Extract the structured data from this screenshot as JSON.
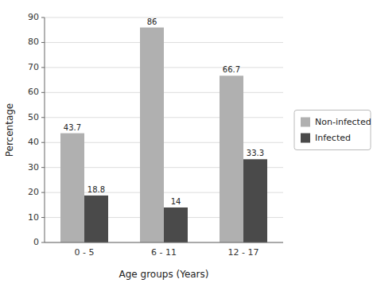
{
  "chart_data": {
    "type": "bar",
    "categories": [
      "0 - 5",
      "6 - 11",
      "12 - 17"
    ],
    "series": [
      {
        "name": "Non-infected",
        "color": "#b0b0b0",
        "values": [
          43.7,
          86,
          66.7
        ]
      },
      {
        "name": "Infected",
        "color": "#4a4a4a",
        "values": [
          18.8,
          14,
          33.3
        ]
      }
    ],
    "xlabel": "Age groups (Years)",
    "ylabel": "Percentage",
    "ylim": [
      0,
      90
    ],
    "yticks": [
      0,
      10,
      20,
      30,
      40,
      50,
      60,
      70,
      80,
      90
    ],
    "grid": true,
    "legend": "right",
    "data_labels": true
  }
}
